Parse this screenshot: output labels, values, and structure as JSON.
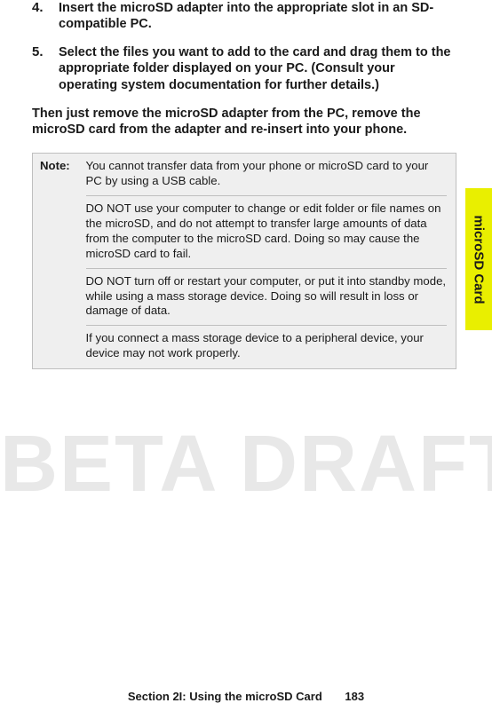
{
  "watermark": "BETA DRAFT",
  "steps": [
    {
      "num": "4.",
      "text": "Insert the microSD adapter into the appropriate slot in an SD-compatible PC."
    },
    {
      "num": "5.",
      "text": "Select the files you want to add to the card and drag them to the appropriate folder displayed on your PC. (Consult your operating system documentation for further details.)"
    }
  ],
  "then_text": "Then just remove the microSD adapter from the PC, remove the microSD card from the adapter and re-insert into your phone.",
  "note": {
    "label": "Note:",
    "paras": [
      "You cannot transfer data from your phone or microSD card to your PC by using a USB cable.",
      "DO NOT use your computer to change or edit folder or file names on the microSD, and do not attempt to transfer large amounts of data from the computer to the microSD card. Doing so may cause the microSD card to fail.",
      "DO NOT turn off or restart your computer, or put it into standby mode, while using a mass storage device. Doing so will result in loss or damage of data.",
      "If you connect a mass storage device to a peripheral device, your device may not work properly."
    ]
  },
  "side_tab": "microSD Card",
  "footer": {
    "section": "Section 2I: Using the microSD Card",
    "page": "183"
  },
  "colors": {
    "tab_bg": "#e9ef00",
    "note_bg": "#efefef",
    "note_border": "#bfbfbf",
    "watermark": "#e8e8e8"
  }
}
